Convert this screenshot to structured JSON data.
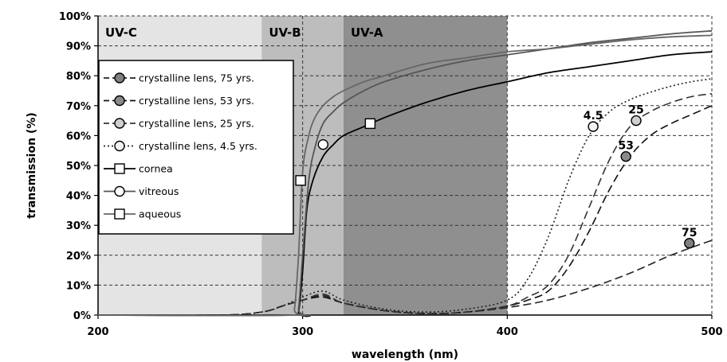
{
  "chart_data": {
    "type": "line",
    "xlabel": "wavelength (nm)",
    "ylabel": "transmission (%)",
    "xlim": [
      200,
      500
    ],
    "ylim": [
      0,
      100
    ],
    "x_ticks": [
      "200",
      "300",
      "400",
      "500"
    ],
    "x_tick_values": [
      200,
      300,
      400,
      500
    ],
    "y_ticks": [
      "0%",
      "10%",
      "20%",
      "30%",
      "40%",
      "50%",
      "60%",
      "70%",
      "80%",
      "90%",
      "100%"
    ],
    "y_tick_values": [
      0,
      10,
      20,
      30,
      40,
      50,
      60,
      70,
      80,
      90,
      100
    ],
    "grid": "dashed, x and y",
    "legend_position": "left",
    "bands": [
      {
        "label": "UV-C",
        "from": 200,
        "to": 280,
        "color": "#e4e4e4"
      },
      {
        "label": "UV-B",
        "from": 280,
        "to": 320,
        "color": "#bdbdbd"
      },
      {
        "label": "UV-A",
        "from": 320,
        "to": 400,
        "color": "#8f8f8f"
      }
    ],
    "series": [
      {
        "name": "crystalline lens, 75 yrs.",
        "style": "dashed",
        "color": "#222222",
        "marker": "circle",
        "marker_fill": "#808080",
        "marker_at": [
          489,
          24
        ],
        "annotation": "75",
        "x": [
          200,
          260,
          280,
          290,
          300,
          310,
          320,
          340,
          360,
          380,
          400,
          420,
          440,
          460,
          480,
          500
        ],
        "y": [
          0,
          0,
          1,
          3,
          5,
          6.5,
          4,
          1.5,
          0.5,
          1,
          2.5,
          5,
          9,
          14,
          20,
          25
        ]
      },
      {
        "name": "crystalline lens, 53 yrs.",
        "style": "dashed",
        "color": "#111111",
        "marker": "circle",
        "marker_fill": "#8a8a8a",
        "marker_at": [
          458,
          53
        ],
        "annotation": "53",
        "x": [
          200,
          260,
          280,
          290,
          300,
          310,
          320,
          340,
          360,
          380,
          400,
          410,
          420,
          430,
          440,
          450,
          460,
          470,
          480,
          490,
          500
        ],
        "y": [
          0,
          0,
          1,
          3,
          5,
          6,
          4,
          1.5,
          0.5,
          1,
          3,
          5,
          8,
          16,
          28,
          42,
          53,
          60,
          64,
          67,
          70
        ]
      },
      {
        "name": "crystalline lens, 25 yrs.",
        "style": "dashed",
        "color": "#333333",
        "marker": "circle",
        "marker_fill": "#cfcfcf",
        "marker_at": [
          463,
          65
        ],
        "annotation": "25",
        "x": [
          200,
          260,
          280,
          290,
          300,
          310,
          320,
          340,
          360,
          380,
          400,
          410,
          420,
          430,
          440,
          450,
          460,
          470,
          480,
          490,
          500
        ],
        "y": [
          0,
          0,
          1,
          3,
          5,
          7,
          4,
          1.5,
          0.5,
          1,
          3,
          6,
          10,
          20,
          36,
          52,
          63,
          68,
          71,
          73,
          74
        ]
      },
      {
        "name": "crystalline lens, 4.5 yrs.",
        "style": "dotted",
        "color": "#222222",
        "marker": "circle",
        "marker_fill": "#f2f2f2",
        "marker_at": [
          442,
          63
        ],
        "annotation": "4.5",
        "x": [
          200,
          260,
          280,
          290,
          300,
          310,
          320,
          340,
          360,
          380,
          400,
          410,
          420,
          430,
          440,
          450,
          460,
          470,
          480,
          490,
          500
        ],
        "y": [
          0,
          0,
          1,
          3,
          6,
          8,
          5,
          2,
          1,
          2,
          5,
          12,
          26,
          45,
          60,
          68,
          72,
          74.5,
          76.5,
          78,
          79
        ]
      },
      {
        "name": "cornea",
        "style": "solid",
        "color": "#000000",
        "marker": "square",
        "marker_fill": "#ffffff",
        "marker_at": [
          333,
          64
        ],
        "x": [
          200,
          296,
          298,
          300,
          302,
          305,
          310,
          315,
          320,
          330,
          340,
          360,
          380,
          400,
          420,
          440,
          460,
          480,
          500
        ],
        "y": [
          0,
          0,
          1,
          15,
          35,
          45,
          53,
          57,
          60,
          63,
          66,
          71,
          75,
          78,
          81,
          83,
          85,
          87,
          88
        ]
      },
      {
        "name": "vitreous",
        "style": "solid",
        "color": "#555555",
        "marker": "circle",
        "marker_fill": "#ffffff",
        "marker_at": [
          310,
          57
        ],
        "x": [
          200,
          296,
          298,
          300,
          303,
          306,
          310,
          315,
          320,
          330,
          340,
          360,
          380,
          400,
          420,
          440,
          460,
          480,
          500
        ],
        "y": [
          0,
          0,
          2,
          20,
          45,
          56,
          64,
          68,
          71,
          75,
          78,
          82,
          85,
          87,
          89,
          91,
          92.5,
          94,
          95
        ]
      },
      {
        "name": "aqueous",
        "style": "solid",
        "color": "#666666",
        "marker": "square",
        "marker_fill": "#ffffff",
        "marker_at": [
          299,
          45
        ],
        "x": [
          200,
          294,
          296,
          298,
          300,
          303,
          306,
          310,
          315,
          320,
          330,
          340,
          360,
          380,
          400,
          420,
          440,
          460,
          480,
          500
        ],
        "y": [
          0,
          0,
          2,
          20,
          48,
          60,
          66,
          70,
          73,
          75,
          78,
          80,
          84,
          86,
          88,
          89,
          90.5,
          92,
          93,
          93.5
        ]
      }
    ]
  }
}
